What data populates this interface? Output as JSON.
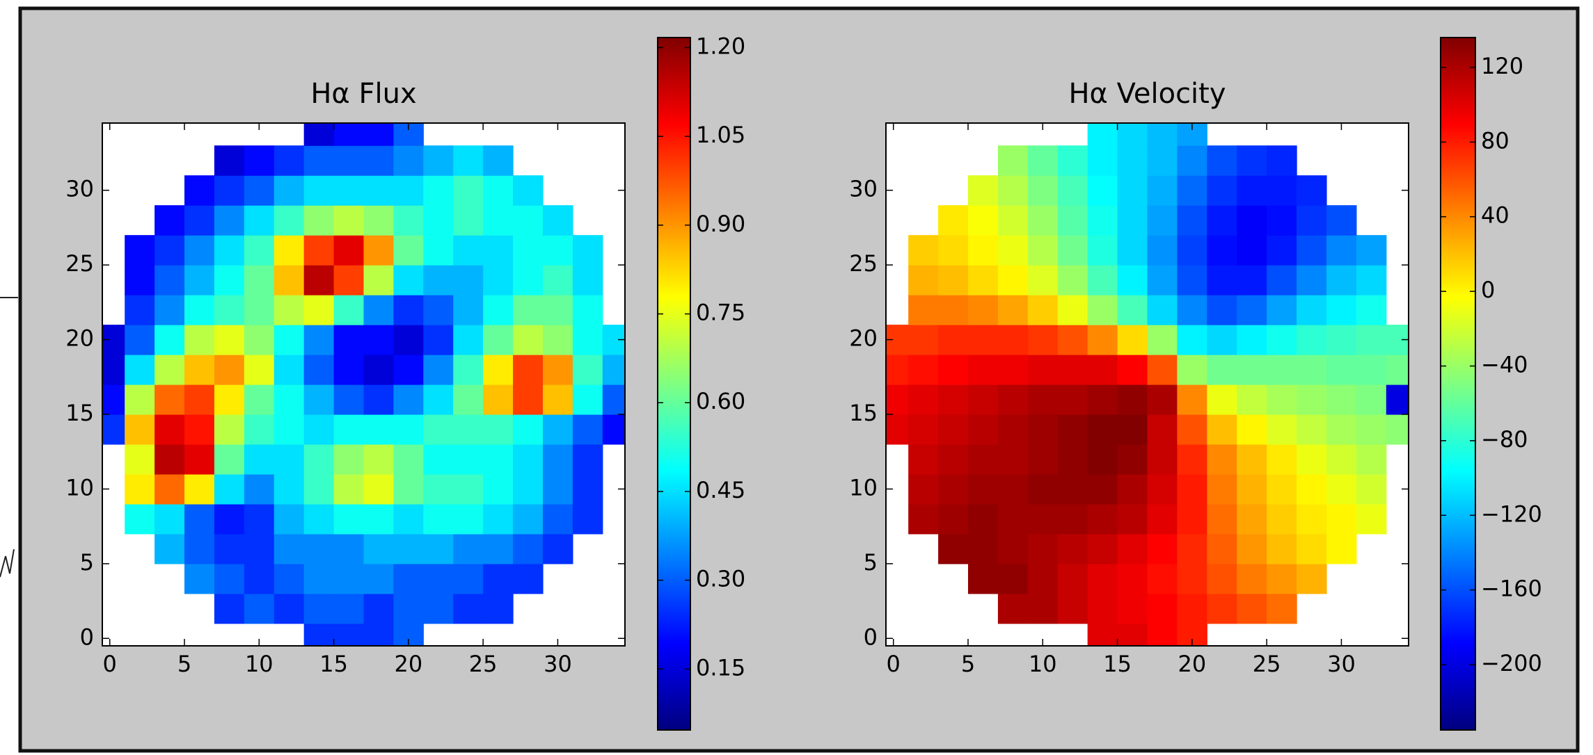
{
  "chart_data": [
    {
      "type": "heatmap",
      "title": "Hα Flux",
      "colormap": "jet",
      "x": [
        0,
        2,
        4,
        6,
        8,
        10,
        12,
        14,
        16,
        18,
        20,
        22,
        24,
        26,
        28,
        30,
        32,
        34
      ],
      "y": [
        0,
        2,
        4,
        6,
        8,
        10,
        12,
        14,
        16,
        18,
        20,
        22,
        24,
        26,
        28,
        30,
        32,
        34
      ],
      "z": [
        [
          null,
          null,
          null,
          null,
          null,
          null,
          null,
          0.25,
          0.25,
          0.25,
          0.3,
          null,
          null,
          null,
          null,
          null,
          null,
          null
        ],
        [
          null,
          null,
          null,
          null,
          0.25,
          0.3,
          0.25,
          0.3,
          0.3,
          0.25,
          0.3,
          0.3,
          0.25,
          0.25,
          null,
          null,
          null,
          null
        ],
        [
          null,
          null,
          null,
          0.35,
          0.3,
          0.25,
          0.3,
          0.35,
          0.35,
          0.35,
          0.3,
          0.3,
          0.3,
          0.25,
          0.25,
          null,
          null,
          null
        ],
        [
          null,
          null,
          0.4,
          0.3,
          0.25,
          0.25,
          0.35,
          0.35,
          0.35,
          0.4,
          0.4,
          0.4,
          0.35,
          0.35,
          0.3,
          0.25,
          null,
          null
        ],
        [
          null,
          0.5,
          0.45,
          0.3,
          0.22,
          0.25,
          0.4,
          0.45,
          0.5,
          0.5,
          0.45,
          0.5,
          0.5,
          0.45,
          0.4,
          0.3,
          0.25,
          null
        ],
        [
          null,
          0.8,
          0.95,
          0.8,
          0.45,
          0.35,
          0.45,
          0.55,
          0.7,
          0.75,
          0.6,
          0.55,
          0.55,
          0.5,
          0.45,
          0.35,
          0.25,
          null
        ],
        [
          null,
          0.75,
          1.15,
          1.1,
          0.6,
          0.45,
          0.45,
          0.55,
          0.65,
          0.7,
          0.6,
          0.5,
          0.5,
          0.5,
          0.45,
          0.35,
          0.25,
          null
        ],
        [
          0.25,
          0.85,
          1.1,
          1.05,
          0.7,
          0.55,
          0.5,
          0.45,
          0.5,
          0.5,
          0.5,
          0.55,
          0.55,
          0.55,
          0.5,
          0.4,
          0.3,
          0.2
        ],
        [
          0.2,
          0.7,
          0.95,
          1.0,
          0.8,
          0.6,
          0.5,
          0.4,
          0.3,
          0.25,
          0.35,
          0.45,
          0.6,
          0.85,
          1.0,
          0.85,
          0.5,
          0.3
        ],
        [
          0.15,
          0.45,
          0.7,
          0.85,
          0.9,
          0.75,
          0.45,
          0.3,
          0.2,
          0.15,
          0.2,
          0.35,
          0.55,
          0.8,
          1.0,
          0.9,
          0.55,
          0.4
        ],
        [
          0.15,
          0.3,
          0.5,
          0.7,
          0.75,
          0.65,
          0.5,
          0.35,
          0.2,
          0.2,
          0.15,
          0.25,
          0.45,
          0.6,
          0.7,
          0.65,
          0.5,
          0.45
        ],
        [
          null,
          0.25,
          0.35,
          0.5,
          0.55,
          0.6,
          0.7,
          0.75,
          0.55,
          0.35,
          0.25,
          0.3,
          0.4,
          0.5,
          0.6,
          0.6,
          0.5,
          null
        ],
        [
          null,
          0.2,
          0.3,
          0.4,
          0.5,
          0.6,
          0.85,
          1.15,
          1.0,
          0.7,
          0.45,
          0.4,
          0.4,
          0.45,
          0.5,
          0.55,
          0.45,
          null
        ],
        [
          null,
          0.2,
          0.25,
          0.35,
          0.45,
          0.55,
          0.8,
          1.0,
          1.1,
          0.9,
          0.6,
          0.5,
          0.45,
          0.45,
          0.5,
          0.5,
          0.45,
          null
        ],
        [
          null,
          null,
          0.2,
          0.25,
          0.35,
          0.45,
          0.55,
          0.65,
          0.7,
          0.65,
          0.55,
          0.5,
          0.55,
          0.5,
          0.5,
          0.45,
          null,
          null
        ],
        [
          null,
          null,
          null,
          0.2,
          0.25,
          0.3,
          0.4,
          0.45,
          0.45,
          0.45,
          0.45,
          0.5,
          0.55,
          0.5,
          0.45,
          null,
          null,
          null
        ],
        [
          null,
          null,
          null,
          null,
          0.15,
          0.2,
          0.25,
          0.3,
          0.3,
          0.3,
          0.35,
          0.4,
          0.45,
          0.4,
          null,
          null,
          null,
          null
        ],
        [
          null,
          null,
          null,
          null,
          null,
          null,
          null,
          0.15,
          0.2,
          0.2,
          0.3,
          null,
          null,
          null,
          null,
          null,
          null,
          null
        ]
      ],
      "xlim": [
        -0.5,
        34.5
      ],
      "ylim": [
        -0.5,
        34.5
      ],
      "xticks": [
        0,
        5,
        10,
        15,
        20,
        25,
        30
      ],
      "yticks": [
        0,
        5,
        10,
        15,
        20,
        25,
        30
      ],
      "clim": [
        0.047,
        1.217
      ],
      "cticks": [
        0.15,
        {
          "value": 0.3,
          "label": "0.30"
        },
        0.45,
        {
          "value": 0.6,
          "label": "0.60"
        },
        0.75,
        {
          "value": 0.9,
          "label": "0.90"
        },
        1.05,
        {
          "value": 1.2,
          "label": "1.20"
        }
      ]
    },
    {
      "type": "heatmap",
      "title": "Hα Velocity",
      "colormap": "jet",
      "x": [
        0,
        2,
        4,
        6,
        8,
        10,
        12,
        14,
        16,
        18,
        20,
        22,
        24,
        26,
        28,
        30,
        32,
        34
      ],
      "y": [
        0,
        2,
        4,
        6,
        8,
        10,
        12,
        14,
        16,
        18,
        20,
        22,
        24,
        26,
        28,
        30,
        32,
        34
      ],
      "z": [
        [
          null,
          null,
          null,
          null,
          null,
          null,
          null,
          100,
          100,
          90,
          80,
          null,
          null,
          null,
          null,
          null,
          null,
          null
        ],
        [
          null,
          null,
          null,
          null,
          120,
          120,
          110,
          100,
          95,
          90,
          80,
          70,
          60,
          50,
          null,
          null,
          null,
          null
        ],
        [
          null,
          null,
          null,
          130,
          130,
          120,
          110,
          100,
          95,
          85,
          75,
          60,
          45,
          35,
          25,
          null,
          null,
          null
        ],
        [
          null,
          null,
          130,
          130,
          125,
          120,
          115,
          110,
          100,
          90,
          75,
          55,
          35,
          20,
          10,
          0,
          null,
          null
        ],
        [
          null,
          120,
          125,
          130,
          125,
          125,
          125,
          120,
          115,
          100,
          80,
          50,
          30,
          15,
          5,
          0,
          -10,
          null
        ],
        [
          null,
          115,
          120,
          125,
          125,
          130,
          130,
          130,
          120,
          105,
          80,
          45,
          25,
          10,
          0,
          -10,
          -20,
          null
        ],
        [
          null,
          110,
          115,
          120,
          120,
          125,
          130,
          135,
          130,
          110,
          75,
          40,
          20,
          5,
          -10,
          -20,
          -30,
          null
        ],
        [
          100,
          105,
          110,
          115,
          120,
          125,
          130,
          135,
          135,
          110,
          60,
          20,
          0,
          -15,
          -25,
          -35,
          -40,
          -45
        ],
        [
          95,
          100,
          105,
          110,
          115,
          120,
          120,
          125,
          130,
          120,
          40,
          -10,
          -25,
          -35,
          -40,
          -45,
          -50,
          -200
        ],
        [
          80,
          85,
          90,
          95,
          95,
          100,
          100,
          100,
          90,
          60,
          -40,
          -55,
          -55,
          -55,
          -55,
          -60,
          -60,
          -55
        ],
        [
          70,
          70,
          75,
          75,
          75,
          70,
          60,
          40,
          10,
          -40,
          -100,
          -110,
          -100,
          -90,
          -80,
          -75,
          -70,
          -70
        ],
        [
          null,
          45,
          45,
          40,
          30,
          15,
          -10,
          -40,
          -70,
          -110,
          -140,
          -160,
          -150,
          -130,
          -110,
          -100,
          -90,
          null
        ],
        [
          null,
          25,
          20,
          10,
          0,
          -15,
          -40,
          -70,
          -100,
          -130,
          -160,
          -180,
          -180,
          -160,
          -140,
          -120,
          -110,
          null
        ],
        [
          null,
          15,
          10,
          0,
          -10,
          -30,
          -55,
          -85,
          -110,
          -135,
          -165,
          -185,
          -190,
          -180,
          -160,
          -140,
          -130,
          null
        ],
        [
          null,
          null,
          5,
          -5,
          -20,
          -40,
          -65,
          -90,
          -110,
          -130,
          -160,
          -180,
          -190,
          -185,
          -170,
          -160,
          null,
          null
        ],
        [
          null,
          null,
          null,
          -15,
          -30,
          -50,
          -70,
          -95,
          -110,
          -125,
          -150,
          -170,
          -180,
          -180,
          -175,
          null,
          null,
          null
        ],
        [
          null,
          null,
          null,
          null,
          -40,
          -60,
          -80,
          -100,
          -110,
          -120,
          -140,
          -160,
          -170,
          -175,
          null,
          null,
          null,
          null
        ],
        [
          null,
          null,
          null,
          null,
          null,
          null,
          null,
          -100,
          -110,
          -120,
          -130,
          null,
          null,
          null,
          null,
          null,
          null,
          null
        ]
      ],
      "xlim": [
        -0.5,
        34.5
      ],
      "ylim": [
        -0.5,
        34.5
      ],
      "xticks": [
        0,
        5,
        10,
        15,
        20,
        25,
        30
      ],
      "yticks": [
        0,
        5,
        10,
        15,
        20,
        25,
        30
      ],
      "clim": [
        -235,
        136
      ],
      "cticks": [
        {
          "value": -200,
          "label": "−200"
        },
        {
          "value": -160,
          "label": "−160"
        },
        {
          "value": -120,
          "label": "−120"
        },
        {
          "value": -80,
          "label": "−80"
        },
        {
          "value": -40,
          "label": "−40"
        },
        0,
        40,
        80,
        120
      ]
    }
  ]
}
